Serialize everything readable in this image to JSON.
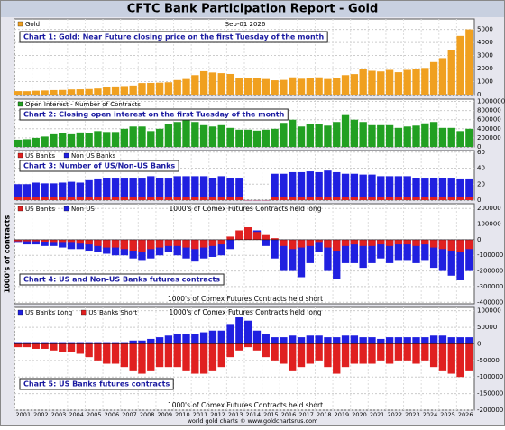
{
  "title": "CFTC Bank Participation Report - Gold",
  "ylabel": "1000's of contracts",
  "footer": "world gold charts © www.goldchartsrus.com",
  "chart_data": [
    {
      "type": "bar",
      "label": "Chart 1: Gold: Near Future closing price on the first Tuesday of the month",
      "date": "Sep-01 2026",
      "x": [
        2001,
        2001.5,
        2002,
        2002.5,
        2003,
        2003.5,
        2004,
        2004.5,
        2005,
        2005.5,
        2006,
        2006.5,
        2007,
        2007.5,
        2008,
        2008.5,
        2009,
        2009.5,
        2010,
        2010.5,
        2011,
        2011.5,
        2012,
        2012.5,
        2013,
        2013.5,
        2014,
        2014.5,
        2015,
        2015.5,
        2016,
        2016.5,
        2017,
        2017.5,
        2018,
        2018.5,
        2019,
        2019.5,
        2020,
        2020.5,
        2021,
        2021.5,
        2022,
        2022.5,
        2023,
        2023.5,
        2024,
        2024.5,
        2025,
        2025.5,
        2026,
        2026.5
      ],
      "xlim": [
        2001,
        2027
      ],
      "ylim": [
        0,
        5800
      ],
      "yticks": [
        0,
        1000,
        2000,
        3000,
        4000,
        5000
      ],
      "series": [
        {
          "name": "Gold",
          "color": "#f0a020",
          "values": [
            270,
            265,
            300,
            320,
            350,
            360,
            400,
            410,
            430,
            470,
            560,
            630,
            660,
            700,
            890,
            900,
            920,
            950,
            1120,
            1200,
            1500,
            1800,
            1700,
            1650,
            1590,
            1300,
            1250,
            1300,
            1200,
            1100,
            1130,
            1330,
            1220,
            1280,
            1330,
            1200,
            1290,
            1500,
            1580,
            1970,
            1830,
            1780,
            1900,
            1720,
            1900,
            1950,
            2050,
            2500,
            2800,
            3400,
            4500,
            5000
          ]
        }
      ]
    },
    {
      "type": "bar",
      "label": "Chart 2: Closing open interest on the first Tuesday of the month",
      "x": [
        2001,
        2001.5,
        2002,
        2002.5,
        2003,
        2003.5,
        2004,
        2004.5,
        2005,
        2005.5,
        2006,
        2006.5,
        2007,
        2007.5,
        2008,
        2008.5,
        2009,
        2009.5,
        2010,
        2010.5,
        2011,
        2011.5,
        2012,
        2012.5,
        2013,
        2013.5,
        2014,
        2014.5,
        2015,
        2015.5,
        2016,
        2016.5,
        2017,
        2017.5,
        2018,
        2018.5,
        2019,
        2019.5,
        2020,
        2020.5,
        2021,
        2021.5,
        2022,
        2022.5,
        2023,
        2023.5,
        2024,
        2024.5,
        2025,
        2025.5,
        2026,
        2026.5
      ],
      "xlim": [
        2001,
        2027
      ],
      "ylim": [
        0,
        1050000
      ],
      "yticks": [
        0,
        200000,
        400000,
        600000,
        800000,
        1000000
      ],
      "series": [
        {
          "name": "Open Interest - Number of Contracts",
          "color": "#22a022",
          "values": [
            160000,
            170000,
            200000,
            230000,
            280000,
            300000,
            280000,
            320000,
            300000,
            350000,
            330000,
            330000,
            400000,
            450000,
            450000,
            350000,
            400000,
            500000,
            550000,
            600000,
            550000,
            480000,
            450000,
            480000,
            420000,
            380000,
            380000,
            360000,
            380000,
            400000,
            530000,
            600000,
            450000,
            500000,
            500000,
            470000,
            550000,
            700000,
            600000,
            550000,
            480000,
            480000,
            480000,
            420000,
            450000,
            470000,
            520000,
            550000,
            420000,
            420000,
            350000,
            400000
          ]
        }
      ]
    },
    {
      "type": "bar",
      "label": "Chart 3: Number of US/Non-US Banks",
      "x": [
        2001,
        2001.5,
        2002,
        2002.5,
        2003,
        2003.5,
        2004,
        2004.5,
        2005,
        2005.5,
        2006,
        2006.5,
        2007,
        2007.5,
        2008,
        2008.5,
        2009,
        2009.5,
        2010,
        2010.5,
        2011,
        2011.5,
        2012,
        2012.5,
        2013,
        2013.5,
        2014,
        2014.5,
        2015,
        2015.5,
        2016,
        2016.5,
        2017,
        2017.5,
        2018,
        2018.5,
        2019,
        2019.5,
        2020,
        2020.5,
        2021,
        2021.5,
        2022,
        2022.5,
        2023,
        2023.5,
        2024,
        2024.5,
        2025,
        2025.5,
        2026,
        2026.5
      ],
      "xlim": [
        2001,
        2027
      ],
      "ylim": [
        0,
        62
      ],
      "yticks": [
        0,
        20,
        40,
        60
      ],
      "series": [
        {
          "name": "US Banks",
          "color": "#e02020",
          "values": [
            4,
            4,
            4,
            4,
            4,
            4,
            4,
            4,
            4,
            4,
            4,
            4,
            4,
            4,
            4,
            4,
            4,
            4,
            4,
            4,
            4,
            4,
            4,
            4,
            4,
            4,
            0,
            0,
            0,
            4,
            4,
            4,
            4,
            4,
            4,
            4,
            4,
            4,
            4,
            4,
            4,
            4,
            4,
            4,
            4,
            4,
            4,
            4,
            4,
            4,
            4,
            4
          ]
        },
        {
          "name": "Non US Banks",
          "color": "#2020e0",
          "values": [
            20,
            20,
            22,
            21,
            21,
            22,
            23,
            22,
            25,
            26,
            28,
            27,
            27,
            27,
            27,
            30,
            28,
            27,
            30,
            30,
            30,
            30,
            28,
            30,
            28,
            27,
            0,
            0,
            0,
            33,
            33,
            35,
            35,
            36,
            35,
            37,
            35,
            33,
            33,
            32,
            32,
            30,
            30,
            30,
            30,
            28,
            27,
            28,
            28,
            27,
            26,
            26
          ]
        }
      ]
    },
    {
      "type": "bar",
      "label": "Chart 4: US and Non-US Banks futures contracts",
      "note_top": "1000's of Comex Futures Contracts held long",
      "note_bottom": "1000's of Comex Futures Contracts held short",
      "x": [
        2001,
        2001.5,
        2002,
        2002.5,
        2003,
        2003.5,
        2004,
        2004.5,
        2005,
        2005.5,
        2006,
        2006.5,
        2007,
        2007.5,
        2008,
        2008.5,
        2009,
        2009.5,
        2010,
        2010.5,
        2011,
        2011.5,
        2012,
        2012.5,
        2013,
        2013.5,
        2014,
        2014.5,
        2015,
        2015.5,
        2016,
        2016.5,
        2017,
        2017.5,
        2018,
        2018.5,
        2019,
        2019.5,
        2020,
        2020.5,
        2021,
        2021.5,
        2022,
        2022.5,
        2023,
        2023.5,
        2024,
        2024.5,
        2025,
        2025.5,
        2026,
        2026.5
      ],
      "xlim": [
        2001,
        2027
      ],
      "ylim": [
        -410000,
        230000
      ],
      "yticks": [
        -400000,
        -300000,
        -200000,
        -100000,
        0,
        100000,
        200000
      ],
      "series": [
        {
          "name": "US Banks",
          "color": "#e02020",
          "values": [
            -10000,
            -10000,
            -10000,
            -15000,
            -20000,
            -20000,
            -20000,
            -25000,
            -30000,
            -40000,
            -50000,
            -50000,
            -60000,
            -70000,
            -80000,
            -60000,
            -50000,
            -40000,
            -40000,
            -50000,
            -60000,
            -50000,
            -40000,
            -30000,
            20000,
            60000,
            80000,
            50000,
            30000,
            10000,
            -40000,
            -60000,
            -50000,
            -40000,
            -20000,
            -50000,
            -70000,
            -40000,
            -30000,
            -40000,
            -40000,
            -30000,
            -40000,
            -30000,
            -30000,
            -40000,
            -30000,
            -50000,
            -60000,
            -70000,
            -80000,
            -60000
          ]
        },
        {
          "name": "Non US",
          "color": "#2020e0",
          "values": [
            -20000,
            -30000,
            -30000,
            -40000,
            -40000,
            -50000,
            -60000,
            -60000,
            -70000,
            -80000,
            -90000,
            -100000,
            -100000,
            -120000,
            -130000,
            -120000,
            -100000,
            -80000,
            -100000,
            -120000,
            -140000,
            -120000,
            -110000,
            -100000,
            -60000,
            20000,
            50000,
            60000,
            -40000,
            -120000,
            -200000,
            -200000,
            -240000,
            -150000,
            -80000,
            -200000,
            -250000,
            -150000,
            -150000,
            -180000,
            -150000,
            -120000,
            -150000,
            -130000,
            -130000,
            -150000,
            -130000,
            -180000,
            -200000,
            -230000,
            -260000,
            -200000
          ]
        }
      ]
    },
    {
      "type": "bar",
      "label": "Chart 5: US Banks futures contracts",
      "note_top": "1000's of Comex Futures Contracts held long",
      "note_bottom": "1000's of Comex Futures Contracts held short",
      "x": [
        2001,
        2001.5,
        2002,
        2002.5,
        2003,
        2003.5,
        2004,
        2004.5,
        2005,
        2005.5,
        2006,
        2006.5,
        2007,
        2007.5,
        2008,
        2008.5,
        2009,
        2009.5,
        2010,
        2010.5,
        2011,
        2011.5,
        2012,
        2012.5,
        2013,
        2013.5,
        2014,
        2014.5,
        2015,
        2015.5,
        2016,
        2016.5,
        2017,
        2017.5,
        2018,
        2018.5,
        2019,
        2019.5,
        2020,
        2020.5,
        2021,
        2021.5,
        2022,
        2022.5,
        2023,
        2023.5,
        2024,
        2024.5,
        2025,
        2025.5,
        2026,
        2026.5
      ],
      "xlim": [
        2001,
        2027
      ],
      "ylim": [
        -200000,
        110000
      ],
      "yticks": [
        -200000,
        -150000,
        -100000,
        -50000,
        0,
        50000,
        100000
      ],
      "xticks": [
        2001,
        2002,
        2003,
        2004,
        2005,
        2006,
        2007,
        2008,
        2009,
        2010,
        2011,
        2012,
        2013,
        2014,
        2015,
        2016,
        2017,
        2018,
        2019,
        2020,
        2021,
        2022,
        2023,
        2024,
        2025,
        2026
      ],
      "series": [
        {
          "name": "US Banks Long",
          "color": "#2020e0",
          "values": [
            5000,
            5000,
            5000,
            5000,
            5000,
            5000,
            5000,
            5000,
            5000,
            5000,
            5000,
            5000,
            5000,
            10000,
            10000,
            15000,
            20000,
            25000,
            30000,
            30000,
            30000,
            35000,
            40000,
            40000,
            60000,
            80000,
            70000,
            40000,
            30000,
            20000,
            20000,
            25000,
            20000,
            25000,
            25000,
            20000,
            20000,
            25000,
            25000,
            20000,
            20000,
            15000,
            20000,
            20000,
            20000,
            20000,
            20000,
            25000,
            25000,
            20000,
            20000,
            20000
          ]
        },
        {
          "name": "US Banks Short",
          "color": "#e02020",
          "values": [
            -10000,
            -10000,
            -15000,
            -15000,
            -20000,
            -25000,
            -25000,
            -30000,
            -40000,
            -50000,
            -60000,
            -60000,
            -70000,
            -80000,
            -90000,
            -80000,
            -70000,
            -70000,
            -70000,
            -80000,
            -90000,
            -90000,
            -80000,
            -70000,
            -40000,
            -20000,
            -10000,
            -20000,
            -40000,
            -50000,
            -60000,
            -80000,
            -70000,
            -60000,
            -50000,
            -70000,
            -90000,
            -70000,
            -60000,
            -60000,
            -60000,
            -50000,
            -60000,
            -50000,
            -50000,
            -60000,
            -50000,
            -70000,
            -80000,
            -90000,
            -100000,
            -80000
          ]
        }
      ]
    }
  ]
}
